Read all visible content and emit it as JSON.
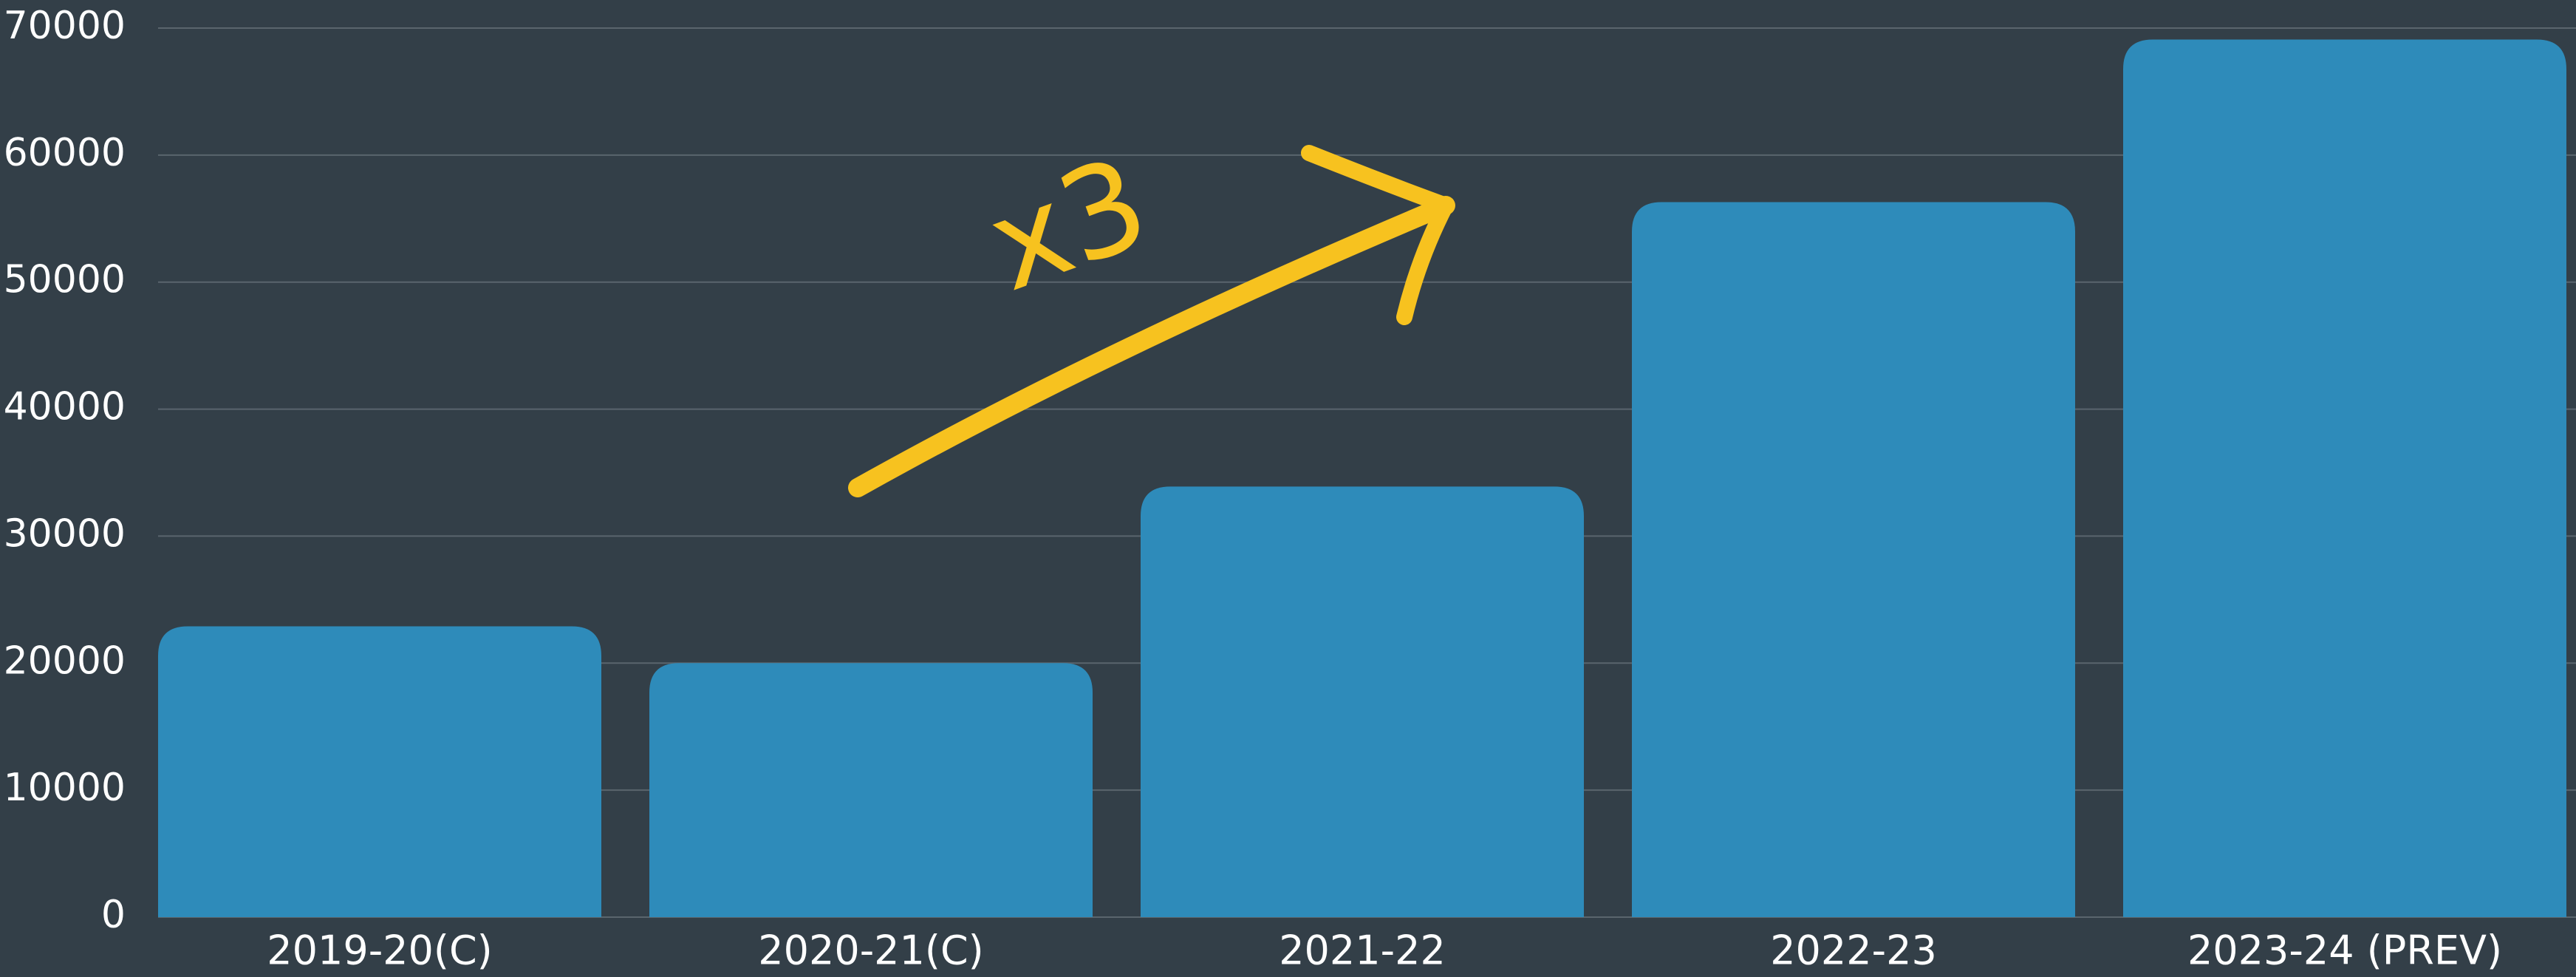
{
  "chart_data": {
    "type": "bar",
    "categories": [
      "2019-20(C)",
      "2020-21(C)",
      "2021-22",
      "2022-23",
      "2023-24 (PREV)"
    ],
    "values": [
      22900,
      20000,
      33900,
      56300,
      69100
    ],
    "color": "#2e8bba",
    "ylim": [
      0,
      70000
    ],
    "yticks": [
      0,
      10000,
      20000,
      30000,
      40000,
      50000,
      60000,
      70000
    ],
    "grid": true,
    "annotation": "x3"
  }
}
